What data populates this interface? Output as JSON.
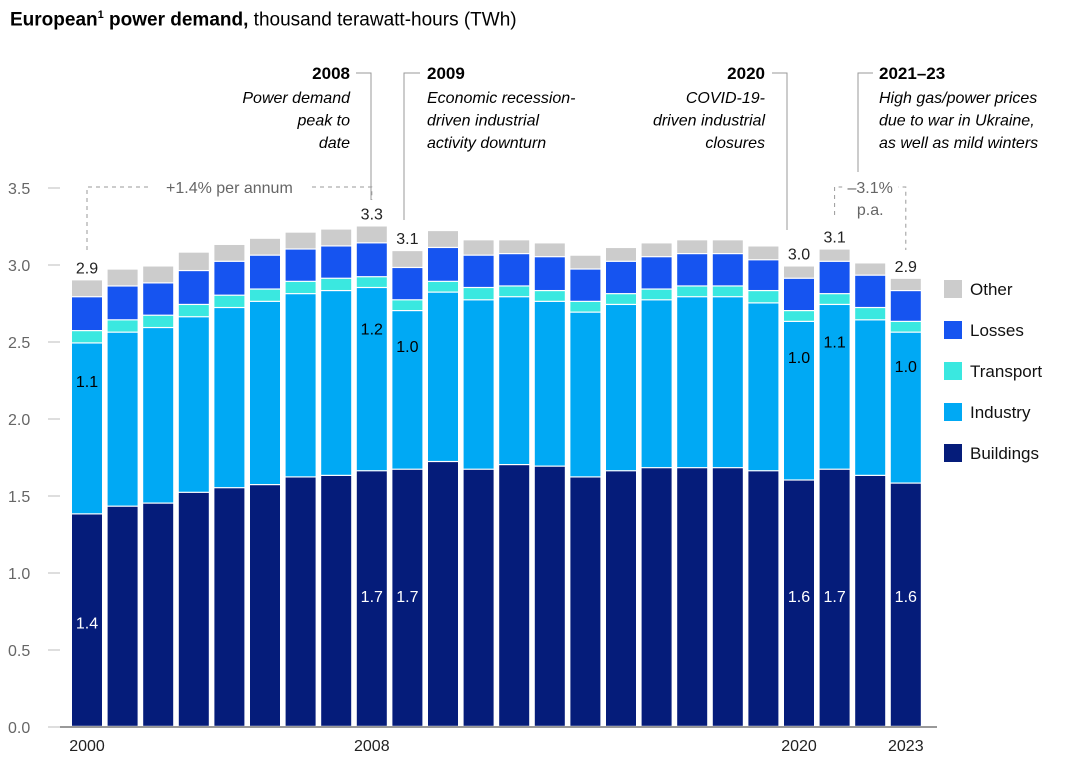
{
  "title": {
    "bold": "European",
    "sup": "1",
    "bold2": " power demand,",
    "rest": " thousand terawatt-hours (TWh)"
  },
  "colors": {
    "Buildings": "#051c7a",
    "Industry": "#00a9f4",
    "Transport": "#3ae8e0",
    "Losses": "#1654f0",
    "Other": "#cccccc"
  },
  "chart_data": {
    "type": "bar",
    "stacked": true,
    "categories": [
      "2000",
      "2001",
      "2002",
      "2003",
      "2004",
      "2005",
      "2006",
      "2007",
      "2008",
      "2009",
      "2010",
      "2011",
      "2012",
      "2013",
      "2014",
      "2015",
      "2016",
      "2017",
      "2018",
      "2019",
      "2020",
      "2021",
      "2022",
      "2023"
    ],
    "series": [
      {
        "name": "Buildings",
        "values": [
          1.38,
          1.43,
          1.45,
          1.52,
          1.55,
          1.57,
          1.62,
          1.63,
          1.66,
          1.67,
          1.72,
          1.67,
          1.7,
          1.69,
          1.62,
          1.66,
          1.68,
          1.68,
          1.68,
          1.66,
          1.6,
          1.67,
          1.63,
          1.58
        ]
      },
      {
        "name": "Industry",
        "values": [
          1.11,
          1.13,
          1.14,
          1.14,
          1.17,
          1.19,
          1.19,
          1.2,
          1.19,
          1.03,
          1.1,
          1.1,
          1.09,
          1.07,
          1.07,
          1.08,
          1.09,
          1.11,
          1.11,
          1.09,
          1.03,
          1.07,
          1.01,
          0.98
        ]
      },
      {
        "name": "Transport",
        "values": [
          0.08,
          0.08,
          0.08,
          0.08,
          0.08,
          0.08,
          0.08,
          0.08,
          0.07,
          0.07,
          0.07,
          0.08,
          0.07,
          0.07,
          0.07,
          0.07,
          0.07,
          0.07,
          0.07,
          0.08,
          0.07,
          0.07,
          0.08,
          0.07
        ]
      },
      {
        "name": "Losses",
        "values": [
          0.22,
          0.22,
          0.21,
          0.22,
          0.22,
          0.22,
          0.21,
          0.21,
          0.22,
          0.21,
          0.22,
          0.21,
          0.21,
          0.22,
          0.21,
          0.21,
          0.21,
          0.21,
          0.21,
          0.2,
          0.21,
          0.21,
          0.21,
          0.2
        ]
      },
      {
        "name": "Other",
        "values": [
          0.11,
          0.11,
          0.11,
          0.12,
          0.11,
          0.11,
          0.11,
          0.11,
          0.11,
          0.11,
          0.11,
          0.1,
          0.09,
          0.09,
          0.09,
          0.09,
          0.09,
          0.09,
          0.09,
          0.09,
          0.08,
          0.08,
          0.08,
          0.08
        ]
      }
    ],
    "ylim": [
      0,
      3.5
    ],
    "yticks": [
      "0.0",
      "0.5",
      "1.0",
      "1.5",
      "2.0",
      "2.5",
      "3.0",
      "3.5"
    ],
    "xtick_labels": {
      "0": "2000",
      "8": "2008",
      "20": "2020",
      "23": "2023"
    },
    "total_labels": {
      "0": "2.9",
      "8": "3.3",
      "9": "3.1",
      "20": "3.0",
      "21": "3.1",
      "23": "2.9"
    },
    "industry_labels": {
      "0": "1.1",
      "8": "1.2",
      "9": "1.0",
      "20": "1.0",
      "21": "1.1",
      "23": "1.0"
    },
    "buildings_labels": {
      "0": "1.4",
      "8": "1.7",
      "9": "1.7",
      "20": "1.6",
      "21": "1.7",
      "23": "1.6"
    },
    "legend": [
      "Other",
      "Losses",
      "Transport",
      "Industry",
      "Buildings"
    ],
    "legend_position": "right",
    "trends": [
      {
        "text": "+1.4% per annum"
      },
      {
        "text": "–3.1%",
        "text2": "p.a."
      }
    ],
    "annotations": [
      {
        "year": "2008",
        "lines": [
          "Power demand",
          "peak to",
          "date"
        ]
      },
      {
        "year": "2009",
        "lines": [
          "Economic recession-",
          "driven industrial",
          "activity downturn"
        ]
      },
      {
        "year": "2020",
        "lines": [
          "COVID-19-",
          "driven industrial",
          "closures"
        ]
      },
      {
        "year": "2021–23",
        "lines": [
          "High gas/power prices",
          "due to war in Ukraine,",
          "as well as mild winters"
        ]
      }
    ]
  }
}
